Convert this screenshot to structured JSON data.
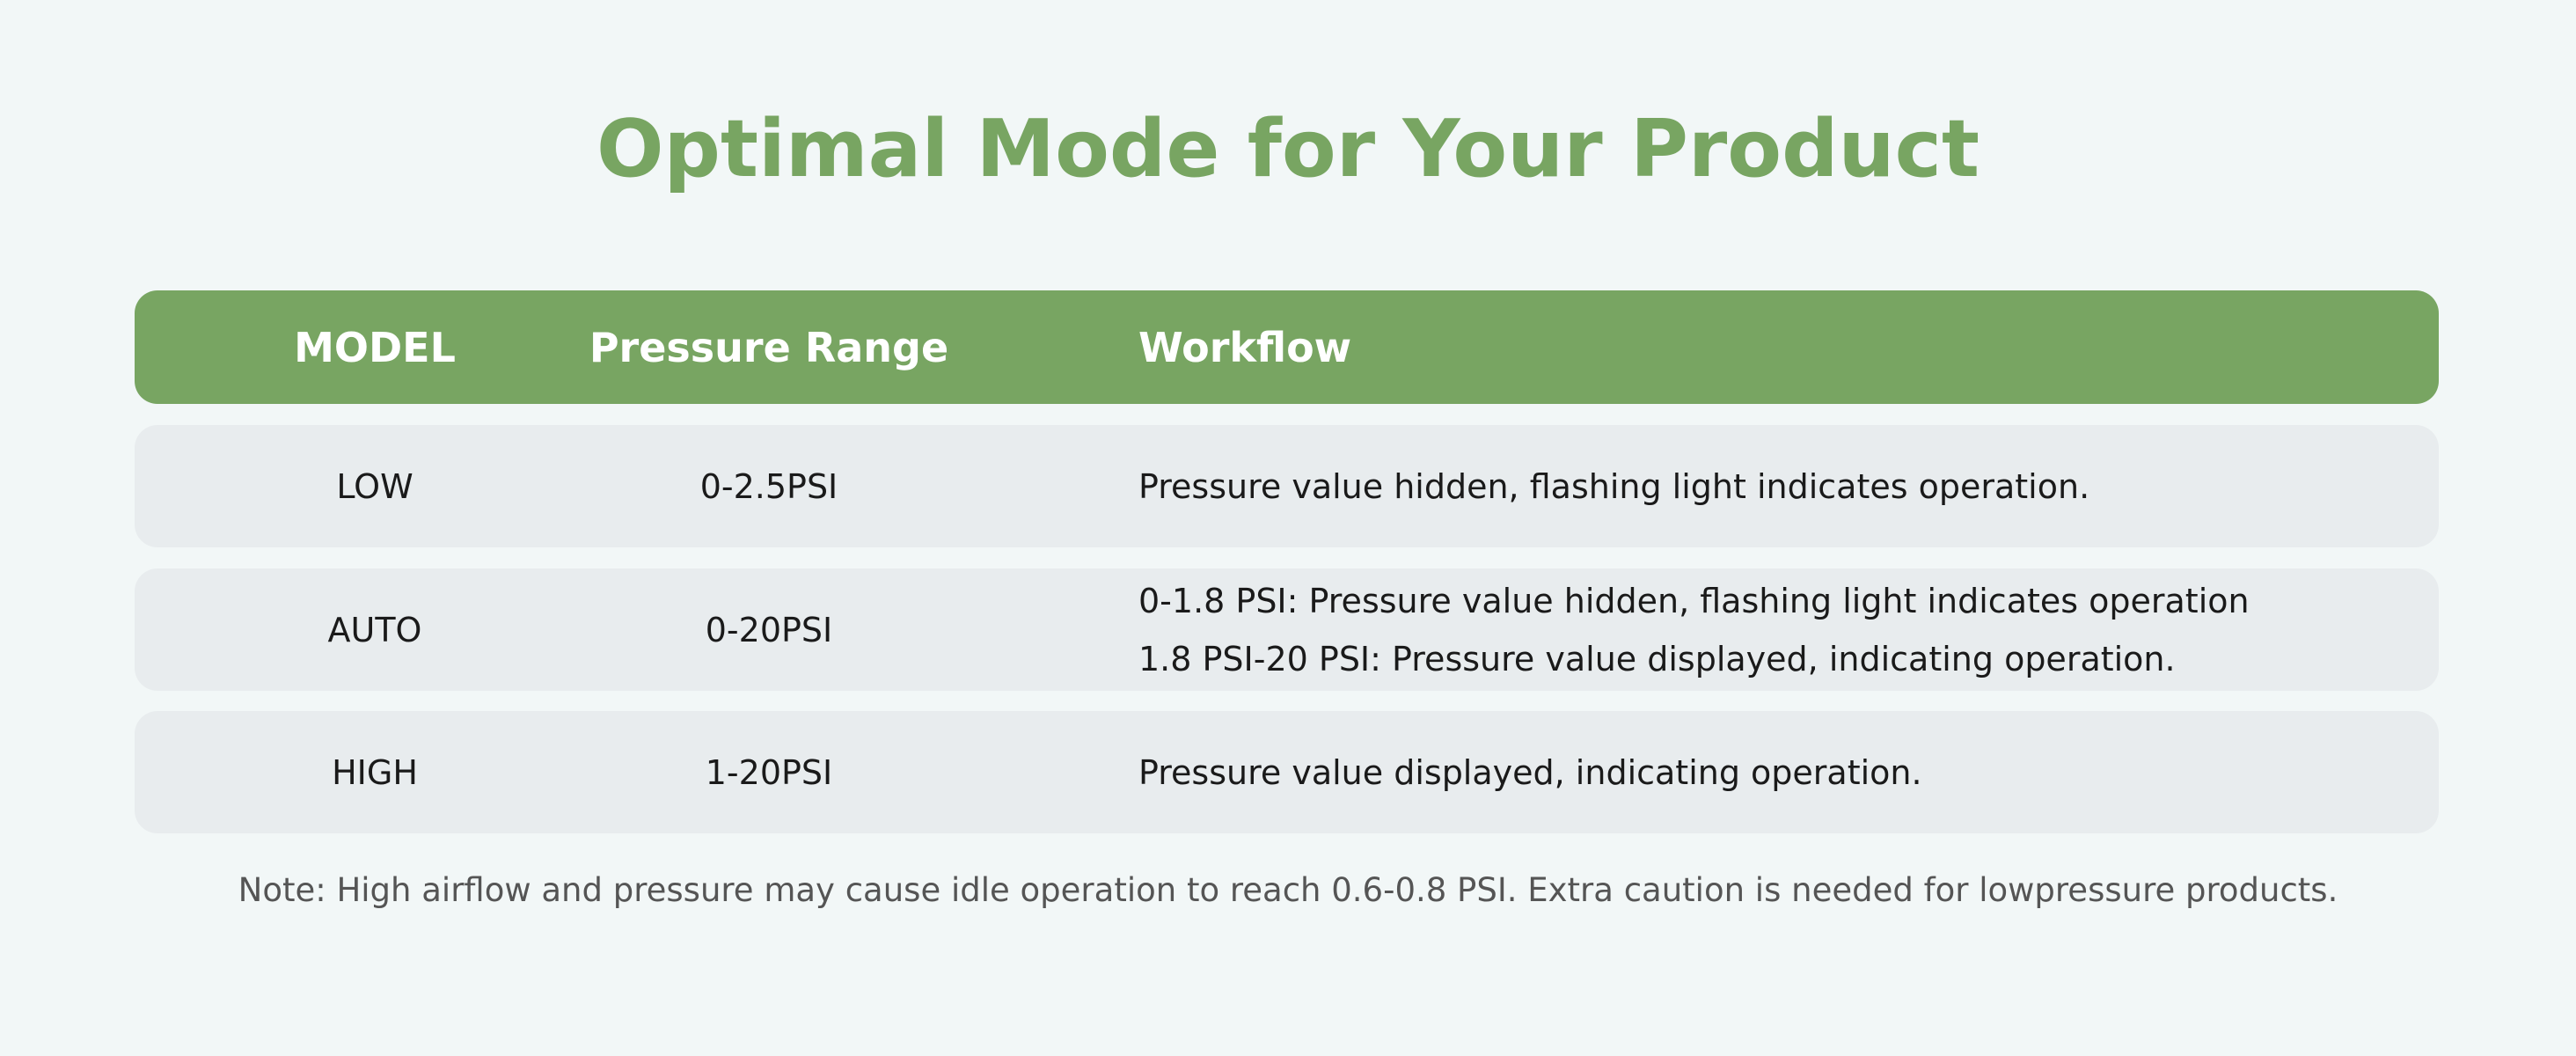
{
  "title": "Optimal Mode for Your Product",
  "table": {
    "headers": [
      "MODEL",
      "Pressure Range",
      "Workflow"
    ],
    "rows": [
      [
        "LOW",
        "0-2.5PSI",
        [
          "Pressure value hidden, flashing light indicates operation."
        ]
      ],
      [
        "AUTO",
        "0-20PSI",
        [
          "0-1.8 PSI: Pressure value hidden, flashing light indicates operation",
          "1.8 PSI-20 PSI: Pressure value displayed, indicating operation."
        ]
      ],
      [
        "HIGH",
        "1-20PSI",
        [
          "Pressure value displayed, indicating operation."
        ]
      ]
    ]
  },
  "note": "Note: High airflow and pressure may cause idle operation to reach 0.6-0.8 PSI. Extra caution is needed for lowpressure products."
}
